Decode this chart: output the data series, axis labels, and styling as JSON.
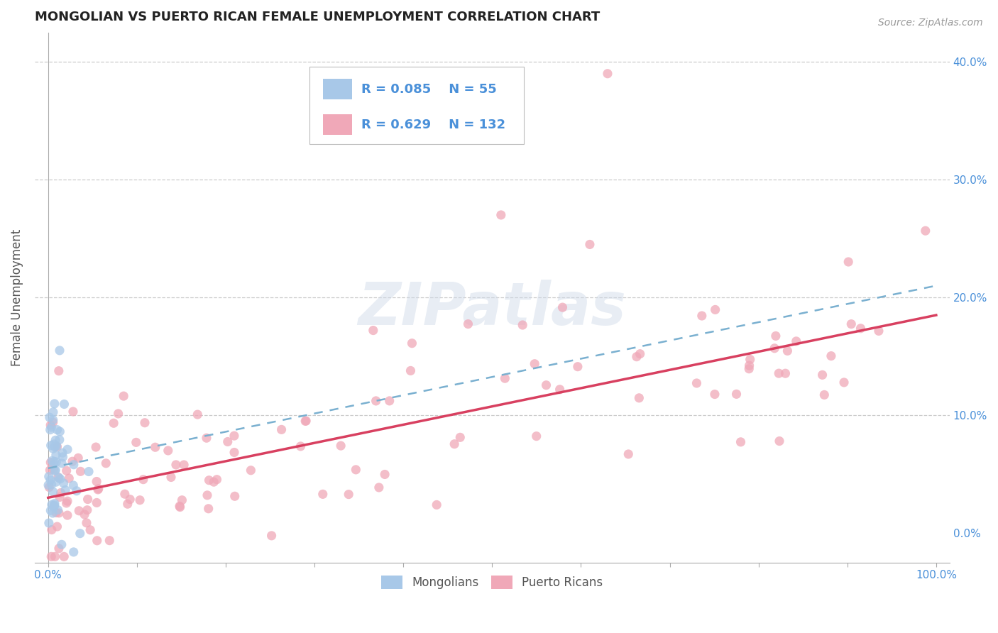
{
  "title": "MONGOLIAN VS PUERTO RICAN FEMALE UNEMPLOYMENT CORRELATION CHART",
  "source": "Source: ZipAtlas.com",
  "ylabel": "Female Unemployment",
  "xlim": [
    -0.015,
    1.015
  ],
  "ylim": [
    -0.025,
    0.425
  ],
  "xticks": [
    0.0,
    1.0
  ],
  "xticklabels": [
    "0.0%",
    "100.0%"
  ],
  "yticks": [
    0.0,
    0.1,
    0.2,
    0.3,
    0.4
  ],
  "yticklabels": [
    "0.0%",
    "10.0%",
    "20.0%",
    "30.0%",
    "40.0%"
  ],
  "grid_yticks": [
    0.1,
    0.2,
    0.3,
    0.4
  ],
  "mongolian_R": 0.085,
  "mongolian_N": 55,
  "puerto_rican_R": 0.629,
  "puerto_rican_N": 132,
  "mongolian_color": "#a8c8e8",
  "puerto_rican_color": "#f0a8b8",
  "mongolian_line_color": "#7ab0d0",
  "puerto_rican_line_color": "#d84060",
  "legend_label_mongolian": "Mongolians",
  "legend_label_puerto_rican": "Puerto Ricans",
  "watermark_text": "ZIPatlas",
  "background_color": "#ffffff",
  "grid_color": "#cccccc",
  "title_color": "#222222",
  "axis_label_color": "#555555",
  "tick_label_color": "#4a90d9",
  "legend_R_color": "#4a90d9",
  "title_fontsize": 13,
  "source_fontsize": 10,
  "tick_fontsize": 11,
  "legend_fontsize": 13
}
